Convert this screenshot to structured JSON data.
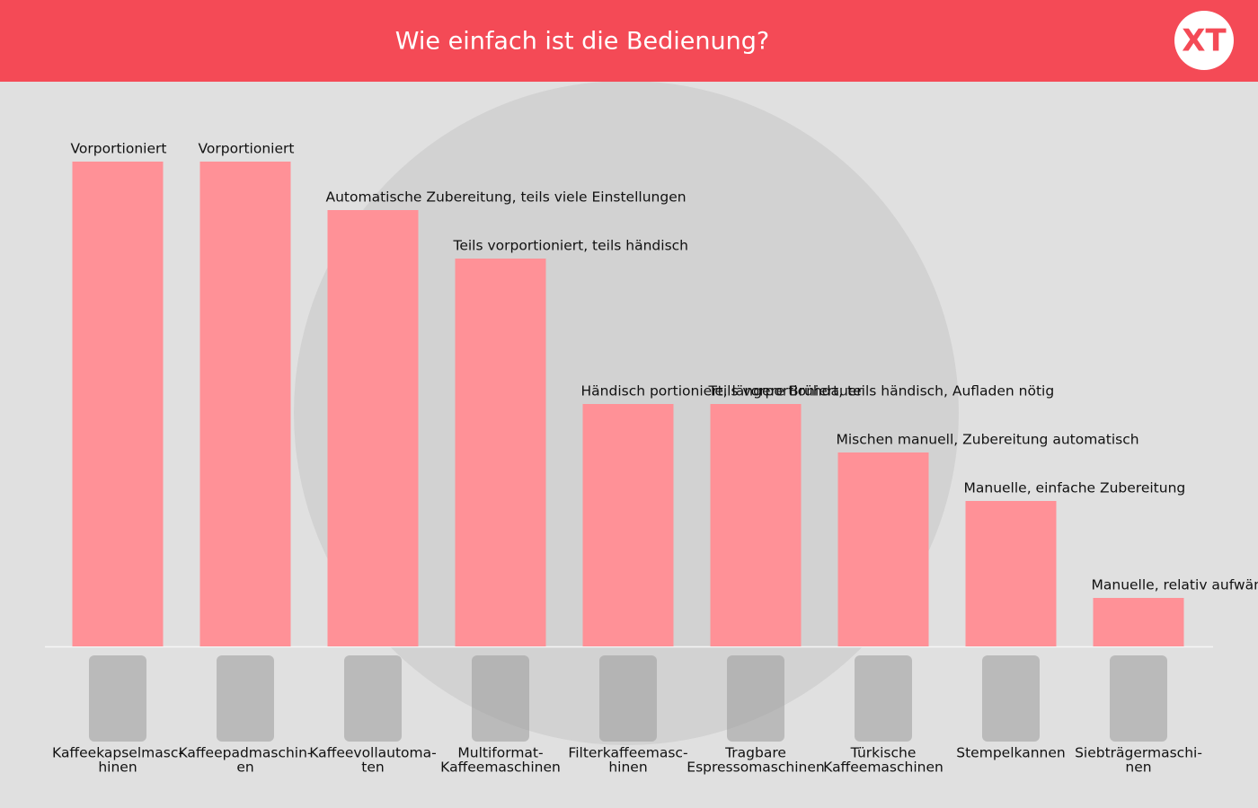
{
  "header": {
    "title": "Wie einfach ist die Bedienung?",
    "logo": "XT"
  },
  "chart_data": {
    "type": "bar",
    "categories": [
      [
        "Kaffeekapselmasc-",
        "hinen"
      ],
      [
        "Kaffeepadmaschin-",
        "en"
      ],
      [
        "Kaffeevollautoma-",
        "ten"
      ],
      [
        "Multiformat-",
        "Kaffeemaschinen"
      ],
      [
        "Filterkaffeemasc-",
        "hinen"
      ],
      [
        "Tragbare",
        "Espressomaschinen"
      ],
      [
        "Türkische",
        "Kaffeemaschinen"
      ],
      [
        "Stempelkannen"
      ],
      [
        "Siebträgermaschi-",
        "nen"
      ]
    ],
    "values": [
      10,
      10,
      9,
      8,
      5,
      5,
      4,
      3,
      1
    ],
    "annotations": [
      "Vorportioniert",
      "Vorportioniert",
      "Automatische Zubereitung, teils viele Einstellungen",
      "Teils vorportioniert, teils händisch",
      "Händisch portioniert, längere Brühdauer",
      "Teils vorportioniert, teils händisch, Aufladen nötig",
      "Mischen manuell, Zubereitung automatisch",
      "Manuelle, einfache Zubereitung",
      "Manuelle, relativ aufwändige Zubereitung"
    ],
    "color": "#ff9197",
    "ylim": [
      0,
      10
    ]
  }
}
